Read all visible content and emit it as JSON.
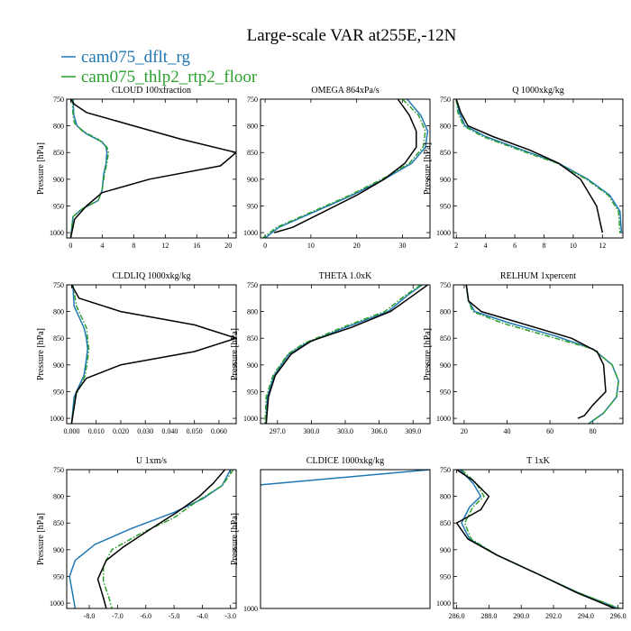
{
  "figure": {
    "title": "Large-scale VAR at255E,-12N",
    "legend": [
      {
        "name": "cam075_dflt_rg",
        "color": "#1f77b4",
        "dash": "solid"
      },
      {
        "name": "cam075_thlp2_rtp2_floor",
        "color": "#2ca02c",
        "dash": "dashdot"
      }
    ]
  },
  "chart_data": [
    {
      "type": "line",
      "title": "CLOUD  100xfraction",
      "ylabel": "Pressure [hPa]",
      "xlim": [
        -0.5,
        21
      ],
      "ylim": [
        1010,
        750
      ],
      "xticks": [
        0,
        4,
        8,
        12,
        16,
        20
      ],
      "xtick_labels": [
        "0",
        "4",
        "8",
        "12",
        "16",
        "20"
      ],
      "yticks": [
        750,
        800,
        850,
        900,
        950,
        1000
      ],
      "ytick_labels": [
        "750",
        "800",
        "850",
        "900",
        "950",
        "1000"
      ],
      "series": [
        {
          "color": "#1f77b4",
          "dash": "solid",
          "x": [
            0.3,
            0.4,
            0.8,
            2.0,
            4.0,
            4.5,
            4.6,
            4.5,
            4.2,
            4.0,
            3.5,
            1.5,
            0.3,
            0.0
          ],
          "y": [
            750,
            780,
            800,
            815,
            830,
            840,
            850,
            870,
            890,
            920,
            940,
            955,
            970,
            1010
          ]
        },
        {
          "color": "#2ca02c",
          "dash": "dashdot",
          "x": [
            0.2,
            0.3,
            0.5,
            1.5,
            3.5,
            4.6,
            4.8,
            4.6,
            4.3,
            4.0,
            3.5,
            1.5,
            0.3,
            0.0
          ],
          "y": [
            750,
            780,
            795,
            810,
            825,
            840,
            850,
            870,
            890,
            920,
            940,
            955,
            970,
            1010
          ]
        },
        {
          "color": "#000000",
          "dash": "solid",
          "x": [
            0.0,
            0.5,
            2.0,
            8.0,
            14.0,
            21.0,
            19.0,
            10.0,
            4.0,
            2.0,
            0.5,
            0.0
          ],
          "y": [
            750,
            760,
            775,
            800,
            825,
            850,
            875,
            900,
            925,
            950,
            975,
            1010
          ]
        }
      ]
    },
    {
      "type": "line",
      "title": "OMEGA  864xPa/s",
      "ylabel": "",
      "xlim": [
        -1,
        36
      ],
      "ylim": [
        1010,
        750
      ],
      "xticks": [
        0,
        10,
        20,
        30
      ],
      "xtick_labels": [
        "0",
        "10",
        "20",
        "30"
      ],
      "yticks": [
        750,
        800,
        850,
        900,
        950,
        1000
      ],
      "ytick_labels": [
        "750",
        "800",
        "850",
        "900",
        "950",
        "1000"
      ],
      "series": [
        {
          "color": "#1f77b4",
          "dash": "solid",
          "x": [
            31.0,
            34.0,
            35.5,
            35.0,
            32.0,
            26.0,
            19.0,
            11.0,
            3.0,
            0.0
          ],
          "y": [
            750,
            780,
            810,
            840,
            870,
            900,
            930,
            960,
            990,
            1010
          ]
        },
        {
          "color": "#2ca02c",
          "dash": "dashdot",
          "x": [
            30.0,
            33.5,
            35.0,
            34.5,
            31.5,
            25.5,
            18.5,
            10.5,
            2.5,
            -0.5
          ],
          "y": [
            750,
            780,
            810,
            840,
            870,
            900,
            930,
            960,
            990,
            1010
          ]
        },
        {
          "color": "#000000",
          "dash": "solid",
          "x": [
            29.0,
            31.5,
            33.0,
            33.0,
            30.5,
            26.0,
            20.0,
            13.0,
            6.0,
            2.0
          ],
          "y": [
            750,
            780,
            810,
            840,
            870,
            900,
            930,
            960,
            990,
            1000
          ]
        }
      ]
    },
    {
      "type": "line",
      "title": "Q  1000xkg/kg",
      "ylabel": "Pressure [hPa]",
      "xlim": [
        1.8,
        13.4
      ],
      "ylim": [
        1010,
        750
      ],
      "xticks": [
        2,
        4,
        6,
        8,
        10,
        12
      ],
      "xtick_labels": [
        "2",
        "4",
        "6",
        "8",
        "10",
        "12"
      ],
      "yticks": [
        750,
        800,
        850,
        900,
        950,
        1000
      ],
      "ytick_labels": [
        "750",
        "800",
        "850",
        "900",
        "950",
        "1000"
      ],
      "series": [
        {
          "color": "#1f77b4",
          "dash": "solid",
          "x": [
            2.0,
            2.2,
            2.6,
            4.0,
            6.5,
            9.0,
            11.0,
            12.5,
            13.2,
            13.3
          ],
          "y": [
            750,
            775,
            800,
            820,
            845,
            870,
            900,
            930,
            960,
            1000
          ]
        },
        {
          "color": "#2ca02c",
          "dash": "dashdot",
          "x": [
            2.0,
            2.1,
            2.5,
            3.8,
            6.3,
            8.9,
            10.9,
            12.4,
            13.1,
            13.2
          ],
          "y": [
            750,
            775,
            800,
            820,
            845,
            870,
            900,
            930,
            960,
            1000
          ]
        },
        {
          "color": "#000000",
          "dash": "solid",
          "x": [
            2.0,
            2.3,
            2.8,
            4.5,
            7.0,
            9.0,
            10.5,
            11.6,
            12.0
          ],
          "y": [
            750,
            775,
            800,
            820,
            845,
            870,
            900,
            950,
            1000
          ]
        }
      ]
    },
    {
      "type": "line",
      "title": "CLDLIQ  1000xkg/kg",
      "ylabel": "Pressure [hPa]",
      "xlim": [
        -0.002,
        0.067
      ],
      "ylim": [
        1010,
        750
      ],
      "xticks": [
        0.0,
        0.01,
        0.02,
        0.03,
        0.04,
        0.05,
        0.06
      ],
      "xtick_labels": [
        "0.000",
        "0.010",
        "0.020",
        "0.030",
        "0.040",
        "0.050",
        "0.060"
      ],
      "yticks": [
        750,
        800,
        850,
        900,
        950,
        1000
      ],
      "ytick_labels": [
        "750",
        "800",
        "850",
        "900",
        "950",
        "1000"
      ],
      "series": [
        {
          "color": "#1f77b4",
          "dash": "solid",
          "x": [
            0.0005,
            0.001,
            0.003,
            0.005,
            0.006,
            0.0065,
            0.006,
            0.005,
            0.003,
            0.001,
            0.0
          ],
          "y": [
            750,
            790,
            810,
            830,
            850,
            870,
            890,
            920,
            940,
            960,
            1010
          ]
        },
        {
          "color": "#2ca02c",
          "dash": "dashdot",
          "x": [
            0.0005,
            0.002,
            0.004,
            0.006,
            0.0065,
            0.007,
            0.0065,
            0.0055,
            0.0035,
            0.0015,
            0.0
          ],
          "y": [
            750,
            790,
            810,
            830,
            850,
            870,
            890,
            920,
            940,
            960,
            1010
          ]
        },
        {
          "color": "#000000",
          "dash": "solid",
          "x": [
            0.0,
            0.003,
            0.02,
            0.05,
            0.067,
            0.05,
            0.02,
            0.006,
            0.002,
            0.0
          ],
          "y": [
            750,
            775,
            800,
            825,
            850,
            875,
            900,
            925,
            950,
            1010
          ]
        }
      ]
    },
    {
      "type": "line",
      "title": "THETA  1.0xK",
      "ylabel": "Pressure [hPa]",
      "xlim": [
        295.5,
        310.5
      ],
      "ylim": [
        1010,
        750
      ],
      "xticks": [
        297,
        300,
        303,
        306,
        309
      ],
      "xtick_labels": [
        "297.0",
        "300.0",
        "303.0",
        "306.0",
        "309.0"
      ],
      "yticks": [
        750,
        800,
        850,
        900,
        950,
        1000
      ],
      "ytick_labels": [
        "750",
        "800",
        "850",
        "900",
        "950",
        "1000"
      ],
      "series": [
        {
          "color": "#1f77b4",
          "dash": "solid",
          "x": [
            309.8,
            308.5,
            306.8,
            303.0,
            299.5,
            298.0,
            296.7,
            296.1,
            296.0
          ],
          "y": [
            750,
            770,
            800,
            830,
            860,
            880,
            920,
            960,
            1010
          ]
        },
        {
          "color": "#2ca02c",
          "dash": "dashdot",
          "x": [
            309.7,
            308.3,
            306.5,
            302.7,
            299.3,
            297.9,
            296.6,
            296.0,
            295.9
          ],
          "y": [
            750,
            770,
            800,
            830,
            860,
            880,
            920,
            960,
            1010
          ]
        },
        {
          "color": "#000000",
          "dash": "solid",
          "x": [
            310.3,
            309.0,
            307.0,
            303.5,
            300.0,
            298.2,
            296.8,
            296.2,
            296.0
          ],
          "y": [
            750,
            770,
            800,
            830,
            855,
            880,
            920,
            960,
            1010
          ]
        }
      ]
    },
    {
      "type": "line",
      "title": "RELHUM  1xpercent",
      "ylabel": "Pressure [hPa]",
      "xlim": [
        15,
        94
      ],
      "ylim": [
        1010,
        750
      ],
      "xticks": [
        20,
        40,
        60,
        80
      ],
      "xtick_labels": [
        "20",
        "40",
        "60",
        "80"
      ],
      "yticks": [
        750,
        800,
        850,
        900,
        950,
        1000
      ],
      "ytick_labels": [
        "750",
        "800",
        "850",
        "900",
        "950",
        "1000"
      ],
      "series": [
        {
          "color": "#1f77b4",
          "dash": "solid",
          "x": [
            21,
            22,
            25,
            40,
            62,
            80,
            89,
            92,
            91,
            85,
            78
          ],
          "y": [
            750,
            780,
            800,
            820,
            845,
            870,
            900,
            930,
            960,
            990,
            1010
          ]
        },
        {
          "color": "#2ca02c",
          "dash": "dashdot",
          "x": [
            21,
            22,
            24,
            38,
            60,
            80,
            89,
            92,
            91,
            85,
            78
          ],
          "y": [
            750,
            780,
            800,
            822,
            847,
            870,
            900,
            930,
            960,
            990,
            1010
          ]
        },
        {
          "color": "#000000",
          "dash": "solid",
          "x": [
            21,
            22,
            28,
            45,
            70,
            82,
            85,
            86,
            80,
            76,
            73
          ],
          "y": [
            750,
            780,
            800,
            820,
            850,
            875,
            900,
            950,
            975,
            995,
            1000
          ]
        }
      ]
    },
    {
      "type": "line",
      "title": "U  1xm/s",
      "ylabel": "Pressure [hPa]",
      "xlim": [
        -8.8,
        -2.8
      ],
      "ylim": [
        1010,
        750
      ],
      "xticks": [
        -8,
        -7,
        -6,
        -5,
        -4,
        -3
      ],
      "xtick_labels": [
        "-8.0",
        "-7.0",
        "-6.0",
        "-5.0",
        "-4.0",
        "-3.0"
      ],
      "yticks": [
        750,
        800,
        850,
        900,
        950,
        1000
      ],
      "ytick_labels": [
        "750",
        "800",
        "850",
        "900",
        "950",
        "1000"
      ],
      "series": [
        {
          "color": "#1f77b4",
          "dash": "solid",
          "x": [
            -3.0,
            -3.3,
            -4.0,
            -5.0,
            -6.5,
            -7.8,
            -8.5,
            -8.7,
            -8.6,
            -8.5
          ],
          "y": [
            750,
            780,
            805,
            830,
            860,
            890,
            920,
            950,
            980,
            1010
          ]
        },
        {
          "color": "#2ca02c",
          "dash": "dashdot",
          "x": [
            -2.9,
            -3.3,
            -4.2,
            -5.0,
            -6.2,
            -7.2,
            -7.5,
            -7.5,
            -7.3,
            -7.2
          ],
          "y": [
            750,
            780,
            810,
            840,
            870,
            900,
            930,
            960,
            990,
            1010
          ]
        },
        {
          "color": "#000000",
          "dash": "solid",
          "x": [
            -3.2,
            -3.6,
            -4.1,
            -4.9,
            -5.8,
            -6.8,
            -7.4,
            -7.7,
            -7.5,
            -7.4
          ],
          "y": [
            750,
            775,
            800,
            830,
            860,
            895,
            920,
            955,
            990,
            1010
          ]
        }
      ]
    },
    {
      "type": "line",
      "title": "CLDICE  1000xkg/kg",
      "ylabel": "Pressure [hPa]",
      "xlim": [
        0,
        1
      ],
      "ylim": [
        1000,
        0
      ],
      "xticks": [],
      "xtick_labels": [],
      "yticks": [
        0,
        1000
      ],
      "ytick_labels": [
        "",
        "1000"
      ],
      "series": [
        {
          "color": "#1f77b4",
          "dash": "solid",
          "x": [
            0.0,
            1.0
          ],
          "y": [
            110,
            0
          ]
        }
      ]
    },
    {
      "type": "line",
      "title": "T  1xK",
      "ylabel": "",
      "xlim": [
        285.8,
        296.3
      ],
      "ylim": [
        1010,
        750
      ],
      "xticks": [
        286,
        288,
        290,
        292,
        294,
        296
      ],
      "xtick_labels": [
        "286.0",
        "288.0",
        "290.0",
        "292.0",
        "294.0",
        "296.0"
      ],
      "yticks": [
        750,
        800,
        850,
        900,
        950,
        1000
      ],
      "ytick_labels": [
        "750",
        "800",
        "850",
        "900",
        "950",
        "1000"
      ],
      "series": [
        {
          "color": "#1f77b4",
          "dash": "solid",
          "x": [
            286.2,
            287.0,
            287.5,
            286.8,
            286.3,
            286.8,
            288.5,
            291.0,
            293.5,
            296.0
          ],
          "y": [
            750,
            775,
            800,
            820,
            850,
            880,
            910,
            945,
            980,
            1010
          ]
        },
        {
          "color": "#2ca02c",
          "dash": "dashdot",
          "x": [
            286.3,
            287.2,
            287.7,
            287.0,
            286.5,
            286.9,
            288.5,
            291.0,
            293.5,
            296.1
          ],
          "y": [
            750,
            775,
            800,
            820,
            850,
            880,
            910,
            945,
            980,
            1010
          ]
        },
        {
          "color": "#000000",
          "dash": "solid",
          "x": [
            286.0,
            287.0,
            288.0,
            287.5,
            286.0,
            286.7,
            288.5,
            291.0,
            293.4,
            295.8
          ],
          "y": [
            750,
            770,
            800,
            825,
            850,
            880,
            910,
            945,
            980,
            1010
          ]
        }
      ]
    }
  ]
}
